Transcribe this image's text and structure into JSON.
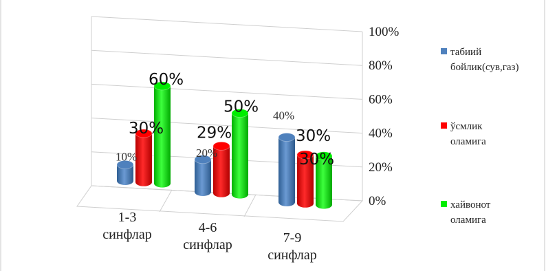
{
  "chart_data": {
    "type": "bar",
    "style": "3d-cylinder",
    "categories": [
      "1-3 синфлар",
      "4-6 синфлар",
      "7-9 синфлар"
    ],
    "category_lines": [
      [
        "1-3",
        "синфлар"
      ],
      [
        "4-6",
        "синфлар"
      ],
      [
        "7-9",
        "синфлар"
      ]
    ],
    "series": [
      {
        "name": "табиий бойлик(сув,газ)",
        "legend_lines": [
          "табиий",
          "бойлик(сув,газ)"
        ],
        "values": [
          10,
          20,
          40
        ],
        "labels": [
          "10%",
          "20%",
          "40%"
        ],
        "color": "#4f81bd"
      },
      {
        "name": "ўсмлик оламига",
        "legend_lines": [
          "ўсмлик",
          "оламига"
        ],
        "values": [
          30,
          29,
          30
        ],
        "labels": [
          "30%",
          "29%",
          "30%"
        ],
        "color": "#ff0000"
      },
      {
        "name": "хайвонот оламига",
        "legend_lines": [
          "хайвонот",
          "оламига"
        ],
        "values": [
          60,
          50,
          30
        ],
        "labels": [
          "60%",
          "50%",
          "30%"
        ],
        "color": "#00ee00"
      }
    ],
    "yticks": [
      "0%",
      "20%",
      "40%",
      "60%",
      "80%",
      "100%"
    ],
    "ylim": [
      0,
      100
    ],
    "grid": true,
    "legend_position": "right"
  }
}
